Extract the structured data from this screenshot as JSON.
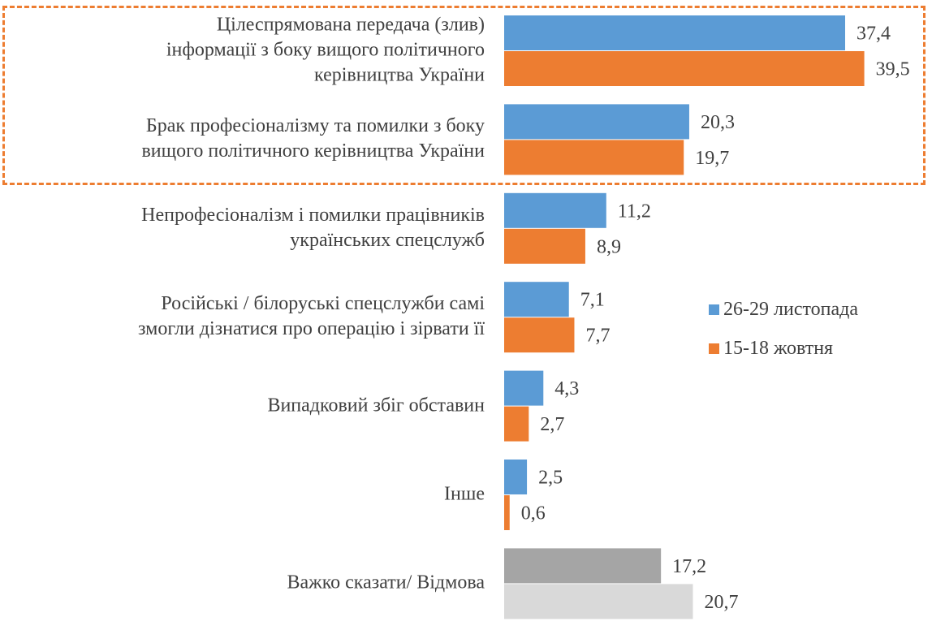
{
  "chart_data": {
    "type": "bar",
    "orientation": "horizontal",
    "categories": [
      "Цілеспрямована передача (злив) інформації з боку вищого політичного керівництва України",
      "Брак професіоналізму та помилки з боку вищого політичного керівництва України",
      "Непрофесіоналізм і помилки працівників українських спецслужб",
      "Російські / білоруські спецслужби самі змогли дізнатися про операцію і зірвати її",
      "Випадковий збіг обставин",
      "Інше",
      "Важко сказати/ Відмова"
    ],
    "category_lines": [
      [
        "Цілеспрямована передача (злив)",
        "інформації з боку вищого політичного",
        "керівництва України"
      ],
      [
        "Брак професіоналізму та помилки з боку",
        "вищого політичного керівництва України"
      ],
      [
        "Непрофесіоналізм і помилки працівників",
        "українських спецслужб"
      ],
      [
        "Російські / білоруські спецслужби самі",
        "змогли дізнатися про операцію і зірвати її"
      ],
      [
        "Випадковий збіг обставин"
      ],
      [
        "Інше"
      ],
      [
        "Важко сказати/ Відмова"
      ]
    ],
    "series": [
      {
        "name": "26-29 листопада",
        "color": "#5B9BD5",
        "values": [
          37.4,
          20.3,
          11.2,
          7.1,
          4.3,
          2.5,
          17.2
        ],
        "labels": [
          "37,4",
          "20,3",
          "11,2",
          "7,1",
          "4,3",
          "2,5",
          "17,2"
        ]
      },
      {
        "name": "15-18 жовтня",
        "color": "#ED7D31",
        "values": [
          39.5,
          19.7,
          8.9,
          7.7,
          2.7,
          0.6,
          20.7
        ],
        "labels": [
          "39,5",
          "19,7",
          "8,9",
          "7,7",
          "2,7",
          "0,6",
          "20,7"
        ]
      }
    ],
    "last_category_colors": [
      "#A5A5A5",
      "#D9D9D9"
    ],
    "highlight_color": "#ED7D31",
    "highlighted_categories": [
      0,
      1
    ],
    "xlim": [
      0,
      40
    ],
    "legend_position": "right",
    "grid": false,
    "title": "",
    "xlabel": "",
    "ylabel": ""
  }
}
